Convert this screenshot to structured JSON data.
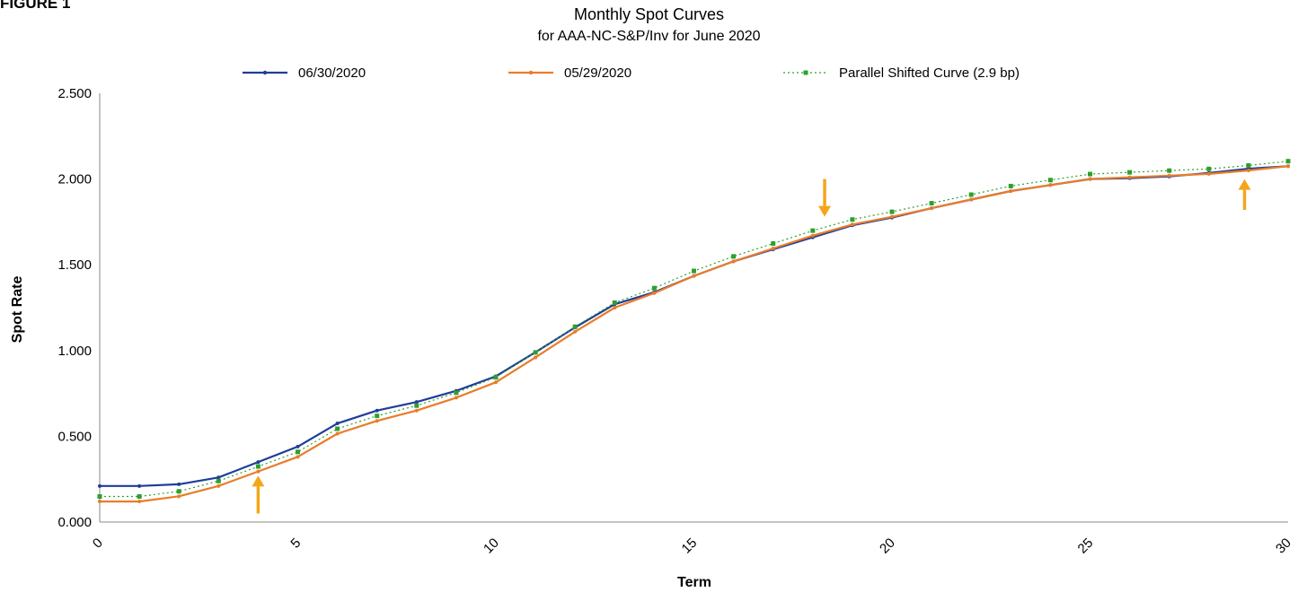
{
  "figure_label": "FIGURE 1",
  "chart_data": {
    "type": "line",
    "title": "Monthly Spot Curves",
    "subtitle": "for AAA-NC-S&P/Inv for June 2020",
    "xlabel": "Term",
    "ylabel": "Spot Rate",
    "xlim": [
      0,
      30
    ],
    "ylim": [
      0,
      2.5
    ],
    "x_ticks": [
      0,
      5,
      10,
      15,
      20,
      25,
      30
    ],
    "x_tick_labels": [
      "0",
      "5",
      "10",
      "15",
      "20",
      "25",
      "30"
    ],
    "y_ticks": [
      0,
      0.5,
      1.0,
      1.5,
      2.0,
      2.5
    ],
    "y_tick_labels": [
      "0.000",
      "0.500",
      "1.000",
      "1.500",
      "2.000",
      "2.500"
    ],
    "grid": false,
    "legend_position": "top",
    "x": [
      0,
      1,
      2,
      3,
      4,
      5,
      6,
      7,
      8,
      9,
      10,
      11,
      12,
      13,
      14,
      15,
      16,
      17,
      18,
      19,
      20,
      21,
      22,
      23,
      24,
      25,
      26,
      27,
      28,
      29,
      30
    ],
    "series": [
      {
        "name": "06/30/2020",
        "color": "#1f3d99",
        "style": "solid",
        "values": [
          0.21,
          0.21,
          0.22,
          0.26,
          0.35,
          0.44,
          0.575,
          0.65,
          0.7,
          0.765,
          0.85,
          0.99,
          1.135,
          1.27,
          1.34,
          1.435,
          1.52,
          1.59,
          1.66,
          1.73,
          1.775,
          1.83,
          1.88,
          1.93,
          1.965,
          2.0,
          2.005,
          2.015,
          2.035,
          2.06,
          2.075
        ]
      },
      {
        "name": "05/29/2020",
        "color": "#e97c2a",
        "style": "solid",
        "values": [
          0.12,
          0.12,
          0.15,
          0.21,
          0.295,
          0.38,
          0.515,
          0.59,
          0.65,
          0.725,
          0.815,
          0.96,
          1.11,
          1.25,
          1.335,
          1.435,
          1.52,
          1.595,
          1.67,
          1.735,
          1.78,
          1.83,
          1.88,
          1.93,
          1.965,
          2.0,
          2.01,
          2.02,
          2.03,
          2.05,
          2.075
        ]
      },
      {
        "name": "Parallel Shifted Curve (2.9 bp)",
        "color": "#2ca02c",
        "style": "dotted",
        "values": [
          0.149,
          0.149,
          0.179,
          0.239,
          0.324,
          0.409,
          0.544,
          0.619,
          0.679,
          0.754,
          0.844,
          0.989,
          1.139,
          1.279,
          1.364,
          1.464,
          1.549,
          1.624,
          1.699,
          1.764,
          1.809,
          1.859,
          1.909,
          1.959,
          1.994,
          2.029,
          2.039,
          2.049,
          2.059,
          2.079,
          2.104
        ]
      }
    ],
    "annotations": [
      {
        "type": "arrow-up",
        "x": 4.0,
        "y_from": 0.05,
        "y_to": 0.27,
        "color": "#f5a51a"
      },
      {
        "type": "arrow-down",
        "x": 18.3,
        "y_from": 2.0,
        "y_to": 1.78,
        "color": "#f5a51a"
      },
      {
        "type": "arrow-up",
        "x": 28.9,
        "y_from": 1.82,
        "y_to": 2.0,
        "color": "#f5a51a"
      }
    ]
  }
}
